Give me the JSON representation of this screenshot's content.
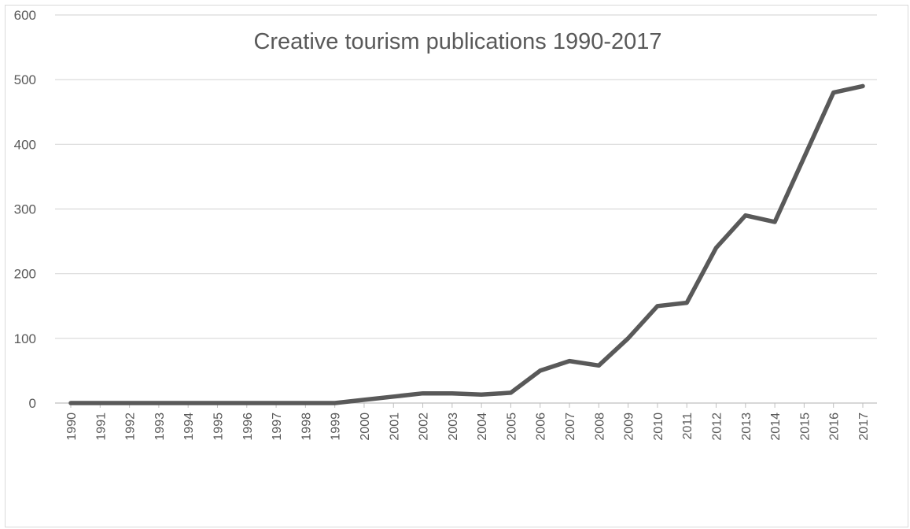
{
  "chart_data": {
    "type": "line",
    "title": "Creative tourism publications 1990-2017",
    "xlabel": "",
    "ylabel": "",
    "categories": [
      "1990",
      "1991",
      "1992",
      "1993",
      "1994",
      "1995",
      "1996",
      "1997",
      "1998",
      "1999",
      "2000",
      "2001",
      "2002",
      "2003",
      "2004",
      "2005",
      "2006",
      "2007",
      "2008",
      "2009",
      "2010",
      "2011",
      "2012",
      "2013",
      "2014",
      "2015",
      "2016",
      "2017"
    ],
    "series": [
      {
        "values": [
          0,
          0,
          0,
          0,
          0,
          0,
          0,
          0,
          0,
          0,
          5,
          10,
          15,
          15,
          13,
          16,
          50,
          65,
          58,
          100,
          150,
          155,
          240,
          290,
          280,
          380,
          480,
          490
        ]
      }
    ],
    "ylim": [
      0,
      600
    ],
    "yticks": [
      "0",
      "100",
      "200",
      "300",
      "400",
      "500",
      "600"
    ],
    "grid": true,
    "legend": "none",
    "line_color": "#595959",
    "grid_color": "#d9d9d9",
    "text_color": "#595959"
  }
}
